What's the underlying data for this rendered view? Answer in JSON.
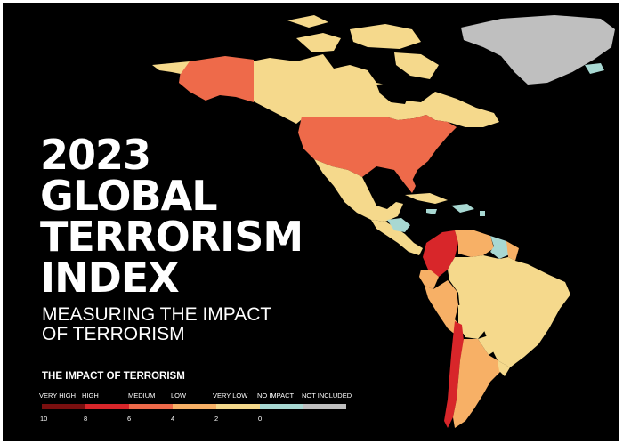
{
  "title_lines": [
    "2023",
    "GLOBAL",
    "TERRORISM",
    "INDEX"
  ],
  "subtitle_lines": [
    "MEASURING THE IMPACT",
    "OF TERRORISM"
  ],
  "legend": {
    "title": "THE IMPACT OF TERRORISM",
    "categories": [
      {
        "label": "VERY HIGH",
        "color": "#7a0f0f"
      },
      {
        "label": "HIGH",
        "color": "#d8262a"
      },
      {
        "label": "MEDIUM",
        "color": "#ee6a4a"
      },
      {
        "label": "LOW",
        "color": "#f7b066"
      },
      {
        "label": "VERY LOW",
        "color": "#f5d98c"
      },
      {
        "label": "NO IMPACT",
        "color": "#a8d8d2"
      },
      {
        "label": "NOT INCLUDED",
        "color": "#bfbfbf"
      }
    ],
    "scale_values": [
      "10",
      "8",
      "6",
      "4",
      "2",
      "0"
    ]
  },
  "colors": {
    "background": "#000000",
    "very_high": "#7a0f0f",
    "high": "#d8262a",
    "medium": "#ee6a4a",
    "low": "#f7b066",
    "very_low": "#f5d98c",
    "no_impact": "#a8d8d2",
    "not_included": "#bfbfbf"
  },
  "regions": [
    {
      "name": "Greenland",
      "impact": "NOT INCLUDED"
    },
    {
      "name": "Alaska",
      "impact": "MEDIUM"
    },
    {
      "name": "Canada",
      "impact": "VERY LOW"
    },
    {
      "name": "United States",
      "impact": "MEDIUM"
    },
    {
      "name": "Mexico",
      "impact": "VERY LOW"
    },
    {
      "name": "Central America",
      "impact": "VERY LOW"
    },
    {
      "name": "Caribbean",
      "impact": "NO IMPACT"
    },
    {
      "name": "Colombia",
      "impact": "HIGH"
    },
    {
      "name": "Venezuela",
      "impact": "LOW"
    },
    {
      "name": "Guyana",
      "impact": "NO IMPACT"
    },
    {
      "name": "Ecuador",
      "impact": "LOW"
    },
    {
      "name": "Peru",
      "impact": "LOW"
    },
    {
      "name": "Brazil",
      "impact": "VERY LOW"
    },
    {
      "name": "Bolivia",
      "impact": "VERY LOW"
    },
    {
      "name": "Paraguay",
      "impact": "VERY LOW"
    },
    {
      "name": "Uruguay",
      "impact": "VERY LOW"
    },
    {
      "name": "Chile",
      "impact": "HIGH"
    },
    {
      "name": "Argentina",
      "impact": "LOW"
    }
  ]
}
